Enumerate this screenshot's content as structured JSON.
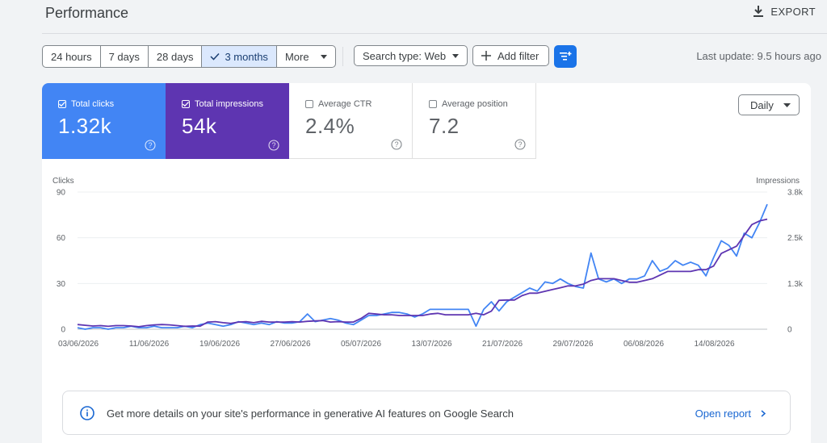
{
  "header": {
    "title": "Performance",
    "export_label": "EXPORT",
    "export_icon": "download-icon"
  },
  "filters": {
    "date_ranges": [
      "24 hours",
      "7 days",
      "28 days",
      "3 months"
    ],
    "selected_range": "3 months",
    "more_label": "More",
    "search_type_label": "Search type: Web",
    "add_filter_label": "Add filter",
    "last_update": "Last update: 9.5 hours ago"
  },
  "metrics": [
    {
      "label": "Total clicks",
      "value": "1.32k",
      "checked": true,
      "color": "#4285f4"
    },
    {
      "label": "Total impressions",
      "value": "54k",
      "checked": true,
      "color": "#5e35b1"
    },
    {
      "label": "Average CTR",
      "value": "2.4%",
      "checked": false,
      "color": "#ffffff"
    },
    {
      "label": "Average position",
      "value": "7.2",
      "checked": false,
      "color": "#ffffff"
    }
  ],
  "granularity": "Daily",
  "chart_data": {
    "type": "line",
    "left_axis_label": "Clicks",
    "right_axis_label": "Impressions",
    "left_ticks": [
      "90",
      "60",
      "30",
      "0"
    ],
    "right_ticks": [
      "3.8k",
      "2.5k",
      "1.3k",
      "0"
    ],
    "ylim_left": [
      0,
      90
    ],
    "ylim_right": [
      0,
      3800
    ],
    "x_tick_labels": [
      "03/06/2026",
      "11/06/2026",
      "19/06/2026",
      "27/06/2026",
      "05/07/2026",
      "13/07/2026",
      "21/07/2026",
      "29/07/2026",
      "06/08/2026",
      "14/08/2026"
    ],
    "series": [
      {
        "color": "#4285f4",
        "axis": "left",
        "values": [
          1,
          0,
          1,
          1,
          0,
          1,
          1,
          2,
          1,
          1,
          2,
          1,
          1,
          1,
          2,
          1,
          3,
          4,
          3,
          2,
          3,
          5,
          4,
          3,
          4,
          3,
          5,
          4,
          4,
          5,
          10,
          5,
          6,
          7,
          6,
          4,
          3,
          6,
          9,
          9,
          10,
          11,
          11,
          10,
          8,
          10,
          13,
          13,
          13,
          13,
          13,
          13,
          2,
          13,
          18,
          12,
          18,
          21,
          24,
          27,
          25,
          31,
          30,
          33,
          30,
          28,
          27,
          50,
          33,
          31,
          33,
          30,
          33,
          33,
          35,
          45,
          38,
          40,
          45,
          42,
          44,
          42,
          35,
          47,
          58,
          55,
          48,
          63,
          60,
          70,
          82
        ]
      },
      {
        "color": "#5e35b1",
        "axis": "right",
        "values": [
          130,
          110,
          90,
          100,
          80,
          100,
          100,
          90,
          70,
          100,
          120,
          130,
          120,
          100,
          80,
          90,
          85,
          200,
          210,
          180,
          160,
          200,
          210,
          180,
          220,
          200,
          200,
          200,
          210,
          200,
          220,
          230,
          240,
          200,
          210,
          200,
          200,
          300,
          440,
          420,
          400,
          400,
          380,
          380,
          380,
          380,
          420,
          440,
          400,
          400,
          400,
          400,
          440,
          400,
          500,
          800,
          810,
          810,
          930,
          1000,
          1000,
          1050,
          1100,
          1150,
          1200,
          1200,
          1250,
          1350,
          1400,
          1400,
          1400,
          1350,
          1300,
          1300,
          1350,
          1400,
          1500,
          1600,
          1600,
          1600,
          1600,
          1650,
          1650,
          1750,
          2100,
          2200,
          2300,
          2600,
          2900,
          3000,
          3050
        ]
      }
    ]
  },
  "banner": {
    "message": "Get more details on your site's performance in generative AI features on Google Search",
    "link_label": "Open report"
  }
}
